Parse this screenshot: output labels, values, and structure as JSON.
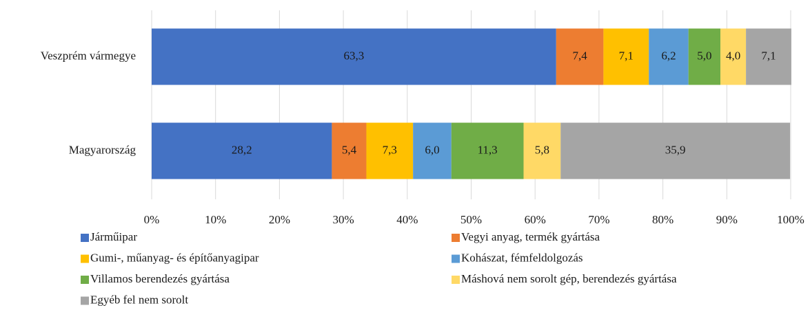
{
  "chart_data": {
    "type": "stacked_bar_horizontal",
    "categories": [
      "Veszprém vármegye",
      "Magyarország"
    ],
    "series": [
      {
        "name": "Járműipar",
        "color": "#4472c4",
        "values": [
          63.3,
          28.2
        ],
        "value_labels": [
          "63,3",
          "28,2"
        ]
      },
      {
        "name": "Vegyi anyag, termék gyártása",
        "color": "#ed7d31",
        "values": [
          7.4,
          5.4
        ],
        "value_labels": [
          "7,4",
          "5,4"
        ]
      },
      {
        "name": "Gumi-, műanyag- és építőanyagipar",
        "color": "#ffc000",
        "values": [
          7.1,
          7.3
        ],
        "value_labels": [
          "7,1",
          "7,3"
        ]
      },
      {
        "name": "Kohászat, fémfeldolgozás",
        "color": "#5b9bd5",
        "values": [
          6.2,
          6.0
        ],
        "value_labels": [
          "6,2",
          "6,0"
        ]
      },
      {
        "name": "Villamos berendezés gyártása",
        "color": "#70ad47",
        "values": [
          5.0,
          11.3
        ],
        "value_labels": [
          "5,0",
          "11,3"
        ]
      },
      {
        "name": "Máshová nem sorolt gép, berendezés gyártása",
        "color": "#ffd966",
        "values": [
          4.0,
          5.8
        ],
        "value_labels": [
          "4,0",
          "5,8"
        ]
      },
      {
        "name": "Egyéb fel nem sorolt",
        "color": "#a5a5a5",
        "values": [
          7.1,
          35.9
        ],
        "value_labels": [
          "7,1",
          "35,9"
        ]
      }
    ],
    "xlim": [
      0,
      100
    ],
    "xticks": [
      {
        "value": 0,
        "label": "0%"
      },
      {
        "value": 10,
        "label": "10%"
      },
      {
        "value": 20,
        "label": "20%"
      },
      {
        "value": 30,
        "label": "30%"
      },
      {
        "value": 40,
        "label": "40%"
      },
      {
        "value": 50,
        "label": "50%"
      },
      {
        "value": 60,
        "label": "60%"
      },
      {
        "value": 70,
        "label": "70%"
      },
      {
        "value": 80,
        "label": "80%"
      },
      {
        "value": 90,
        "label": "90%"
      },
      {
        "value": 100,
        "label": "100%"
      }
    ],
    "grid": true
  }
}
